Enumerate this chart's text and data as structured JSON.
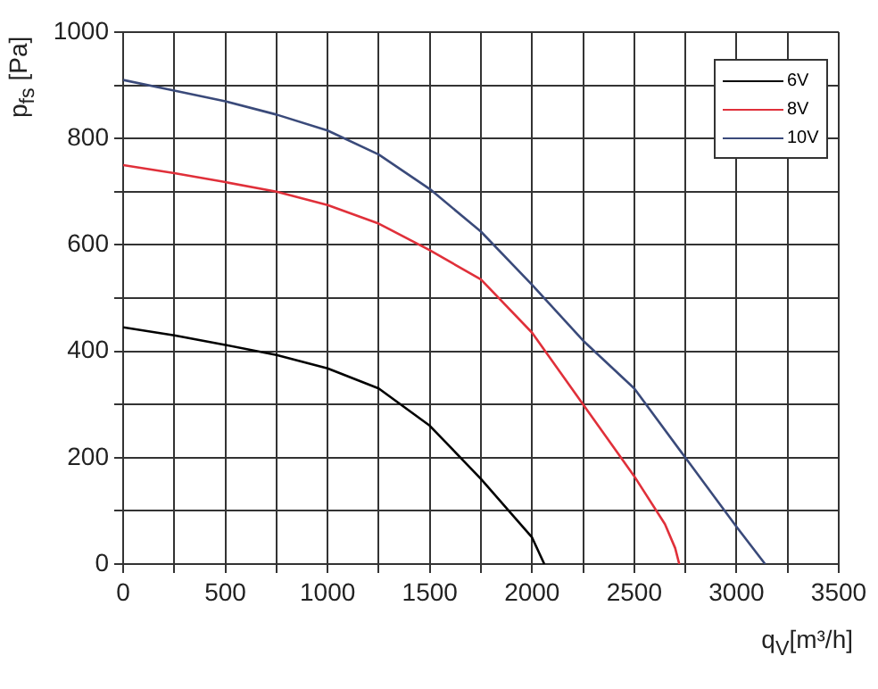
{
  "chart_data": {
    "type": "line",
    "xlabel": "q$_{V}$[m³/h]",
    "ylabel": "p$_{fs}$ [Pa]",
    "xlim": [
      0,
      3500
    ],
    "ylim": [
      0,
      1000
    ],
    "xticks": [
      0,
      {
        "value": 250,
        "label": null
      },
      500,
      {
        "value": 750,
        "label": null
      },
      1000,
      {
        "value": 1250,
        "label": null
      },
      1500,
      {
        "value": 1750,
        "label": null
      },
      2000,
      {
        "value": 2250,
        "label": null
      },
      2500,
      {
        "value": 2750,
        "label": null
      },
      3000,
      {
        "value": 3250,
        "label": null
      },
      3500
    ],
    "yticks": [
      0,
      {
        "value": 100,
        "label": null
      },
      200,
      {
        "value": 300,
        "label": null
      },
      400,
      {
        "value": 500,
        "label": null
      },
      600,
      {
        "value": 700,
        "label": null
      },
      800,
      {
        "value": 900,
        "label": null
      },
      1000
    ],
    "grid": true,
    "legend": "top right",
    "marker": "none",
    "series": [
      {
        "name": "6V",
        "color": "#000000",
        "x": [
          0,
          250,
          500,
          750,
          1000,
          1250,
          1500,
          1750,
          2000,
          2060
        ],
        "values": [
          445,
          430,
          412,
          393,
          368,
          330,
          260,
          160,
          50,
          0
        ]
      },
      {
        "name": "8V",
        "color": "#e0303a",
        "x": [
          0,
          250,
          500,
          750,
          1000,
          1250,
          1500,
          1750,
          2000,
          2250,
          2500,
          2650,
          2700,
          2720
        ],
        "values": [
          750,
          735,
          718,
          700,
          675,
          640,
          590,
          535,
          435,
          300,
          165,
          75,
          30,
          0
        ]
      },
      {
        "name": "10V",
        "color": "#3a4a7a",
        "x": [
          0,
          250,
          500,
          750,
          1000,
          1250,
          1500,
          1750,
          2000,
          2250,
          2500,
          2750,
          3000,
          3140
        ],
        "values": [
          910,
          890,
          870,
          845,
          815,
          770,
          705,
          625,
          525,
          420,
          330,
          200,
          70,
          0
        ]
      }
    ]
  }
}
